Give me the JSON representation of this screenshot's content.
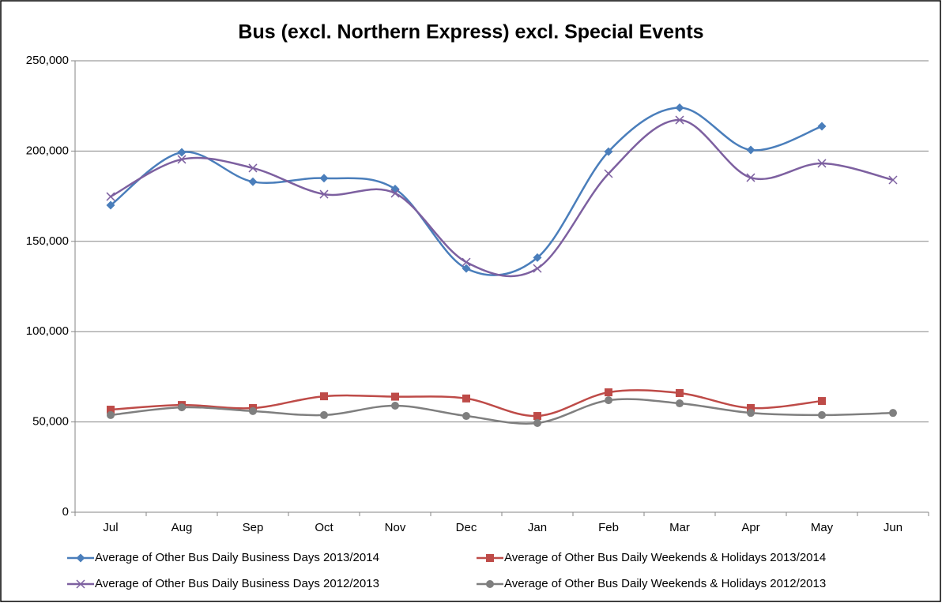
{
  "chart_data": {
    "type": "line",
    "title": "Bus (excl. Northern Express) excl. Special Events",
    "categories": [
      "Jul",
      "Aug",
      "Sep",
      "Oct",
      "Nov",
      "Dec",
      "Jan",
      "Feb",
      "Mar",
      "Apr",
      "May",
      "Jun"
    ],
    "series": [
      {
        "name": "Average of Other Bus Daily Business Days 2013/2014",
        "color": "#4a7ebb",
        "marker": "diamond",
        "values": [
          170000,
          199300,
          183000,
          185000,
          179000,
          135000,
          141000,
          199700,
          224000,
          200600,
          213700,
          null
        ]
      },
      {
        "name": "Average of Other Bus Daily Weekends & Holidays 2013/2014",
        "color": "#be4b48",
        "marker": "square",
        "values": [
          56800,
          59400,
          57700,
          64200,
          64000,
          63000,
          53300,
          66400,
          66000,
          57700,
          61600,
          null
        ]
      },
      {
        "name": "Average of Other Bus Daily Business Days 2012/2013",
        "color": "#7d60a0",
        "marker": "x",
        "values": [
          174800,
          195400,
          190600,
          176100,
          176600,
          138500,
          135000,
          187500,
          217200,
          185300,
          193200,
          184000
        ]
      },
      {
        "name": "Average of Other Bus Daily Weekends & Holidays 2012/2013",
        "color": "#7f7f7f",
        "marker": "circle",
        "values": [
          53800,
          58100,
          56000,
          53800,
          59000,
          53300,
          49400,
          62000,
          60300,
          55000,
          53800,
          55000
        ]
      }
    ],
    "ylim": [
      0,
      250000
    ],
    "yticks": [
      0,
      {
        "value": 50000,
        "label": "50,000"
      },
      {
        "value": 100000,
        "label": "100,000"
      },
      {
        "value": 150000,
        "label": "150,000"
      },
      {
        "value": 200000,
        "label": "200,000"
      },
      {
        "value": 250000,
        "label": "250,000"
      }
    ],
    "grid": true,
    "smooth": true,
    "legend": "bottom"
  }
}
